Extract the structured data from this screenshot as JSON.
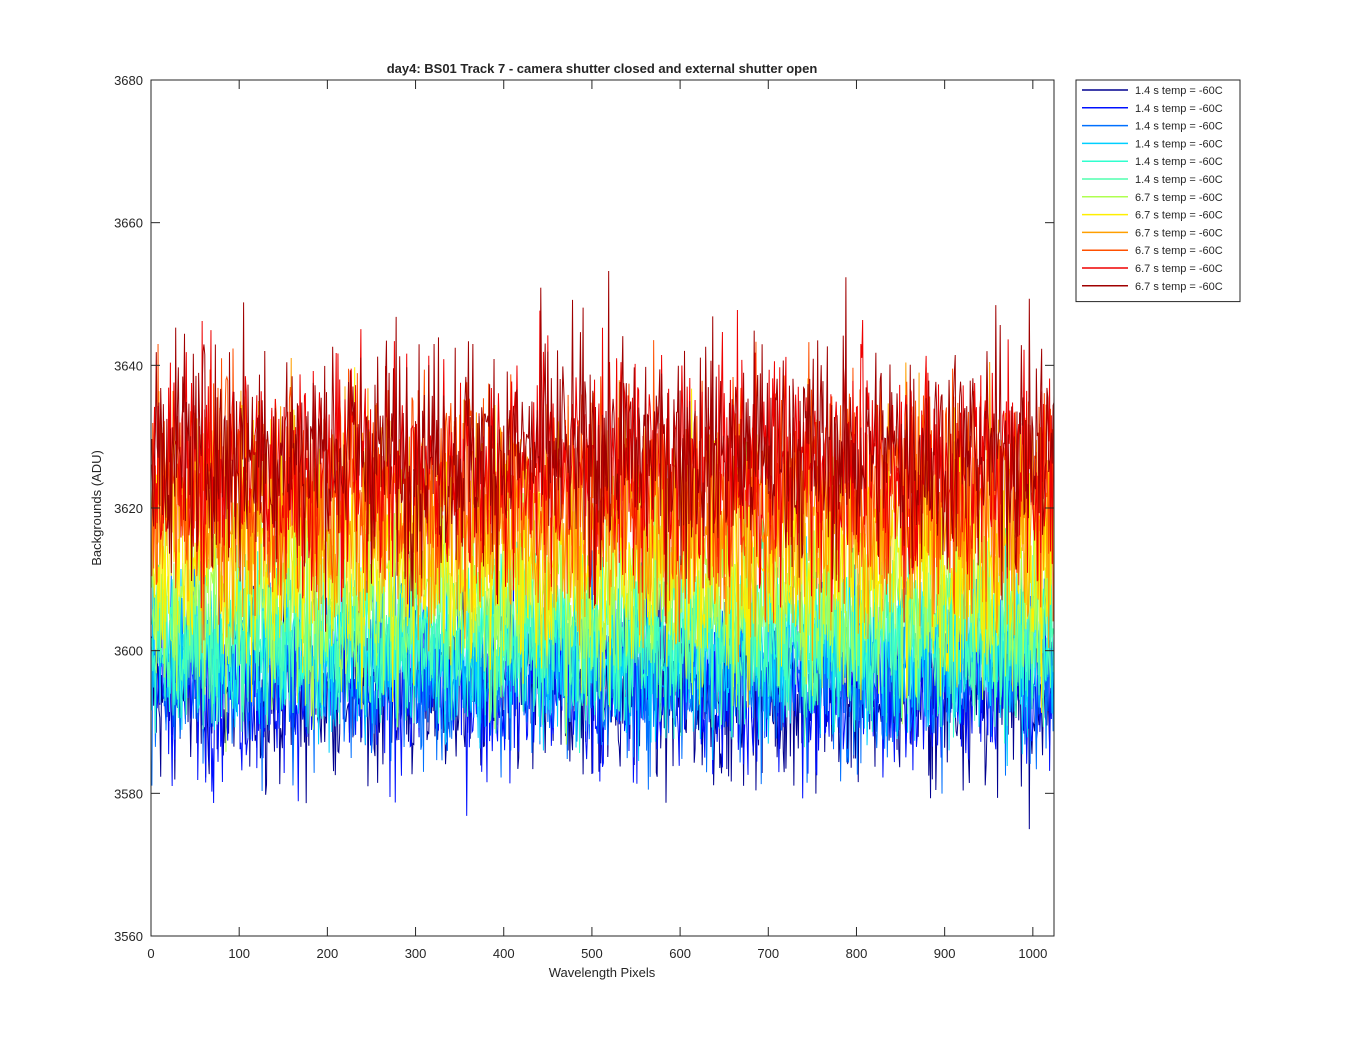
{
  "chart_data": {
    "type": "line",
    "title": "day4: BS01  Track 7 - camera shutter closed and external shutter open",
    "xlabel": "Wavelength Pixels",
    "ylabel": "Backgrounds (ADU)",
    "xlim": [
      0,
      1024
    ],
    "ylim": [
      3560,
      3680
    ],
    "xticks": [
      0,
      100,
      200,
      300,
      400,
      500,
      600,
      700,
      800,
      900,
      1000
    ],
    "yticks": [
      3560,
      3580,
      3600,
      3620,
      3640,
      3660,
      3680
    ],
    "grid": false,
    "legend_position": "outside-top-right",
    "series": [
      {
        "name": "1.4 s temp = -60C",
        "color": "#00008f",
        "mean": 3594,
        "amplitude": 6
      },
      {
        "name": "1.4 s temp = -60C",
        "color": "#0010ff",
        "mean": 3595,
        "amplitude": 6
      },
      {
        "name": "1.4 s temp = -60C",
        "color": "#0070ff",
        "mean": 3597,
        "amplitude": 6
      },
      {
        "name": "1.4 s temp = -60C",
        "color": "#00cfff",
        "mean": 3600,
        "amplitude": 6
      },
      {
        "name": "1.4 s temp = -60C",
        "color": "#30ffcf",
        "mean": 3602,
        "amplitude": 6
      },
      {
        "name": "1.4 s temp = -60C",
        "color": "#50ffaf",
        "mean": 3603,
        "amplitude": 6
      },
      {
        "name": "6.7 s temp = -60C",
        "color": "#afff50",
        "mean": 3608,
        "amplitude": 7
      },
      {
        "name": "6.7 s temp = -60C",
        "color": "#ffef00",
        "mean": 3614,
        "amplitude": 8
      },
      {
        "name": "6.7 s temp = -60C",
        "color": "#ff9f00",
        "mean": 3619,
        "amplitude": 8
      },
      {
        "name": "6.7 s temp = -60C",
        "color": "#ff5000",
        "mean": 3623,
        "amplitude": 8
      },
      {
        "name": "6.7 s temp = -60C",
        "color": "#ef0000",
        "mean": 3626,
        "amplitude": 8
      },
      {
        "name": "6.7 s temp = -60C",
        "color": "#a00000",
        "mean": 3628,
        "amplitude": 8
      }
    ]
  }
}
